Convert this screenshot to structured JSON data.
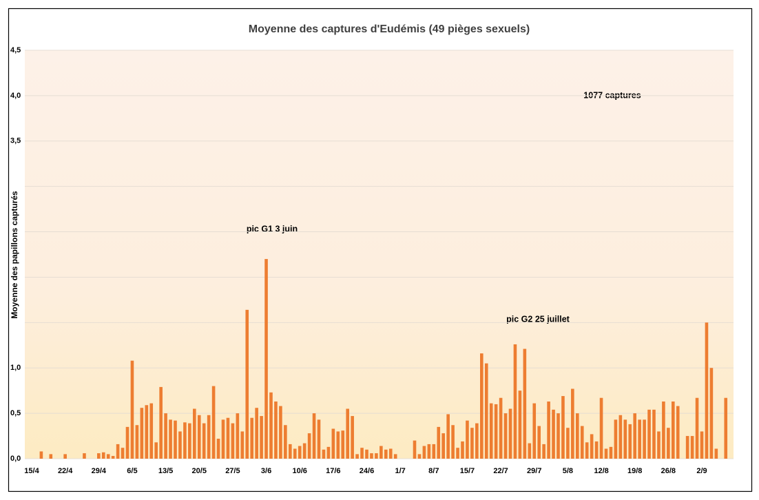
{
  "chart_data": {
    "type": "bar",
    "title": "Moyenne des captures d'Eudémis (49 pièges sexuels)",
    "y_label": "Moyenne des papillons capturés",
    "annotations": [
      "pic G1 3 juin",
      "pic G2 25 juillet",
      "1077 captures"
    ],
    "color": "#ed7d31",
    "grid": true,
    "ylim": [
      0,
      4.5
    ],
    "yticks": [
      {
        "value": 0,
        "label": "0,0"
      },
      {
        "value": 0.5,
        "label": "0,5"
      },
      {
        "value": 1,
        "label": "1,0"
      },
      {
        "value": 1.5,
        "label": null
      },
      {
        "value": 2,
        "label": null
      },
      {
        "value": 2.5,
        "label": null
      },
      {
        "value": 3,
        "label": null
      },
      {
        "value": 3.5,
        "label": "3,5"
      },
      {
        "value": 4,
        "label": "4,0"
      },
      {
        "value": 4.5,
        "label": "4,5"
      }
    ],
    "categories": [
      "15/4",
      null,
      null,
      null,
      null,
      null,
      null,
      "22/4",
      null,
      null,
      null,
      null,
      null,
      null,
      "29/4",
      null,
      null,
      null,
      null,
      null,
      null,
      "6/5",
      null,
      null,
      null,
      null,
      null,
      null,
      "13/5",
      null,
      null,
      null,
      null,
      null,
      null,
      "20/5",
      null,
      null,
      null,
      null,
      null,
      null,
      "27/5",
      null,
      null,
      null,
      null,
      null,
      null,
      "3/6",
      null,
      null,
      null,
      null,
      null,
      null,
      "10/6",
      null,
      null,
      null,
      null,
      null,
      null,
      "17/6",
      null,
      null,
      null,
      null,
      null,
      null,
      "24/6",
      null,
      null,
      null,
      null,
      null,
      null,
      "1/7",
      null,
      null,
      null,
      null,
      null,
      null,
      "8/7",
      null,
      null,
      null,
      null,
      null,
      null,
      "15/7",
      null,
      null,
      null,
      null,
      null,
      null,
      "22/7",
      null,
      null,
      null,
      null,
      null,
      null,
      "29/7",
      null,
      null,
      null,
      null,
      null,
      null,
      "5/8",
      null,
      null,
      null,
      null,
      null,
      null,
      "12/8",
      null,
      null,
      null,
      null,
      null,
      null,
      "19/8",
      null,
      null,
      null,
      null,
      null,
      null,
      "26/8",
      null,
      null,
      null,
      null,
      null,
      null,
      "2/9",
      null,
      null,
      null,
      null,
      null
    ],
    "values": [
      0,
      0,
      0.08,
      0,
      0.05,
      0,
      0,
      0.05,
      0,
      0,
      0,
      0.06,
      0,
      0,
      0.06,
      0.07,
      0.05,
      0.03,
      0.16,
      0.12,
      0.35,
      1.08,
      0.37,
      0.56,
      0.59,
      0.61,
      0.18,
      0.79,
      0.5,
      0.43,
      0.42,
      0.3,
      0.4,
      0.39,
      0.55,
      0.48,
      0.39,
      0.48,
      0.8,
      0.22,
      0.43,
      0.45,
      0.39,
      0.5,
      0.3,
      1.64,
      0.45,
      0.56,
      0.47,
      2.2,
      0.73,
      0.63,
      0.58,
      0.37,
      0.16,
      0.11,
      0.14,
      0.17,
      0.28,
      0.5,
      0.43,
      0.1,
      0.13,
      0.33,
      0.3,
      0.31,
      0.55,
      0.47,
      0.05,
      0.12,
      0.1,
      0.06,
      0.06,
      0.14,
      0.1,
      0.11,
      0.05,
      0,
      0,
      0,
      0.2,
      0.05,
      0.14,
      0.16,
      0.16,
      0.35,
      0.28,
      0.49,
      0.37,
      0.12,
      0.19,
      0.42,
      0.34,
      0.39,
      1.16,
      1.05,
      0.61,
      0.6,
      0.67,
      0.5,
      0.55,
      1.26,
      0.75,
      1.21,
      0.17,
      0.61,
      0.36,
      0.16,
      0.63,
      0.54,
      0.5,
      0.69,
      0.34,
      0.77,
      0.5,
      0.36,
      0.18,
      0.27,
      0.19,
      0.67,
      0.11,
      0.13,
      0.43,
      0.48,
      0.43,
      0.38,
      0.5,
      0.43,
      0.43,
      0.54,
      0.54,
      0.3,
      0.63,
      0.34,
      0.63,
      0.58,
      0,
      0.25,
      0.25,
      0.67,
      0.3,
      1.5,
      1.0,
      0.11,
      0,
      0.67
    ]
  }
}
